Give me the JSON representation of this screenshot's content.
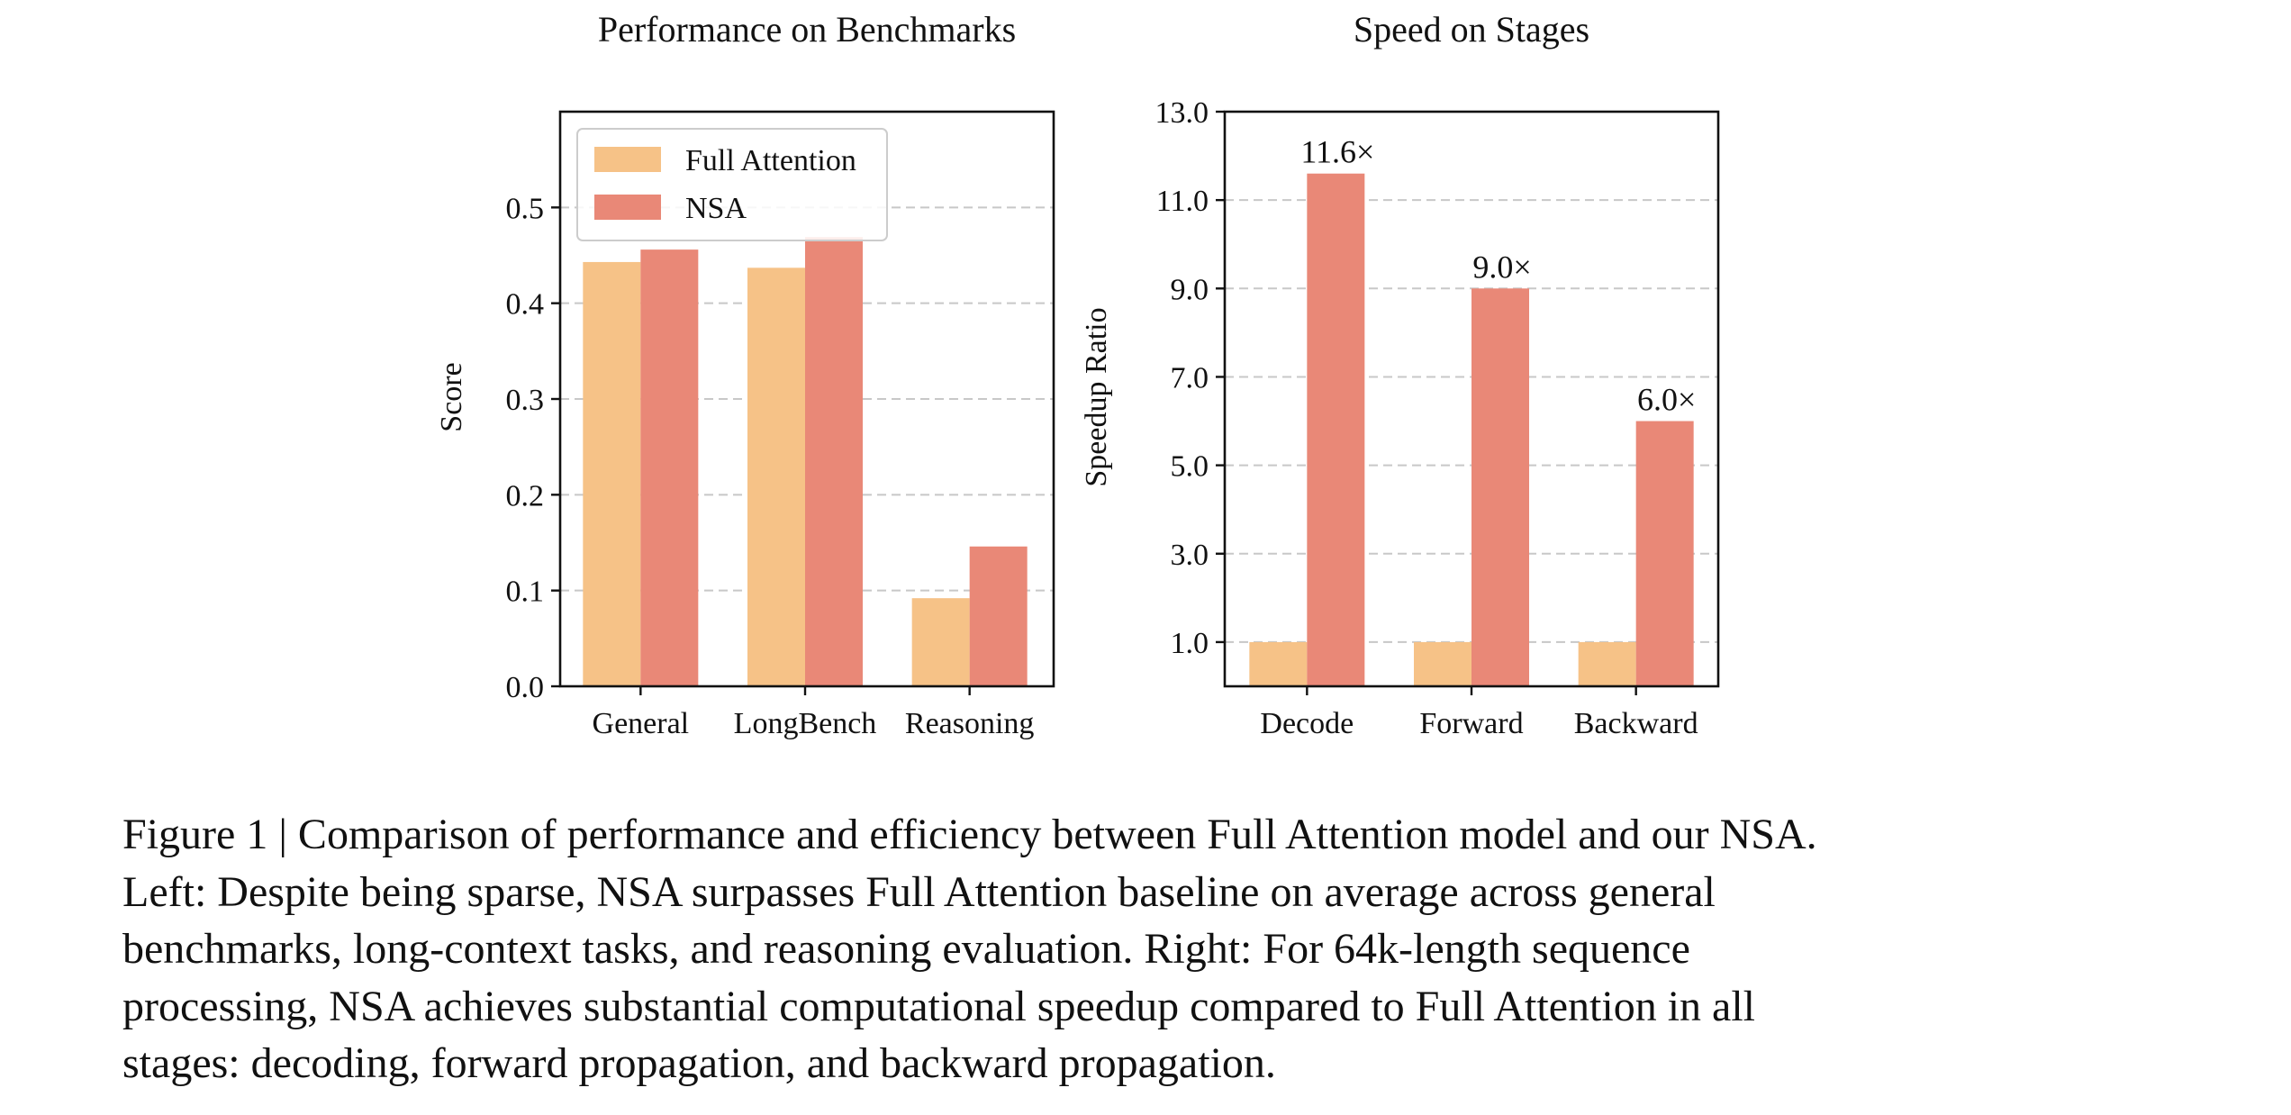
{
  "chart_data": [
    {
      "type": "bar",
      "title": "Performance on Benchmarks",
      "xlabel": "",
      "ylabel": "Score",
      "categories": [
        "General",
        "LongBench",
        "Reasoning"
      ],
      "series": [
        {
          "name": "Full Attention",
          "values": [
            0.443,
            0.437,
            0.092
          ]
        },
        {
          "name": "NSA",
          "values": [
            0.456,
            0.469,
            0.146
          ]
        }
      ],
      "ylim": [
        0,
        0.6
      ],
      "yticks": [
        0.0,
        0.1,
        0.2,
        0.3,
        0.4,
        0.5
      ],
      "ytick_labels": [
        "0.0",
        "0.1",
        "0.2",
        "0.3",
        "0.4",
        "0.5"
      ],
      "grid": true,
      "legend": "top-left",
      "colors": {
        "Full Attention": "#f6c287",
        "NSA": "#e98877"
      }
    },
    {
      "type": "bar",
      "title": "Speed on Stages",
      "xlabel": "",
      "ylabel": "Speedup Ratio",
      "categories": [
        "Decode",
        "Forward",
        "Backward"
      ],
      "series": [
        {
          "name": "Full Attention",
          "values": [
            1.0,
            1.0,
            1.0
          ]
        },
        {
          "name": "NSA",
          "values": [
            11.6,
            9.0,
            6.0
          ],
          "labels": [
            "11.6×",
            "9.0×",
            "6.0×"
          ]
        }
      ],
      "ylim": [
        0,
        13
      ],
      "yticks": [
        1.0,
        3.0,
        5.0,
        7.0,
        9.0,
        11.0,
        13.0
      ],
      "ytick_labels": [
        "1.0",
        "3.0",
        "5.0",
        "7.0",
        "9.0",
        "11.0",
        "13.0"
      ],
      "grid": true,
      "colors": {
        "Full Attention": "#f6c287",
        "NSA": "#e98877"
      }
    }
  ],
  "caption": {
    "lines": [
      "Figure 1 | Comparison of performance and efficiency between Full Attention model and our NSA.",
      "Left: Despite being sparse, NSA surpasses Full Attention baseline on average across general",
      "benchmarks, long-context tasks, and reasoning evaluation. Right: For 64k-length sequence",
      "processing, NSA achieves substantial computational speedup compared to Full Attention in all",
      "stages: decoding, forward propagation, and backward propagation."
    ]
  }
}
